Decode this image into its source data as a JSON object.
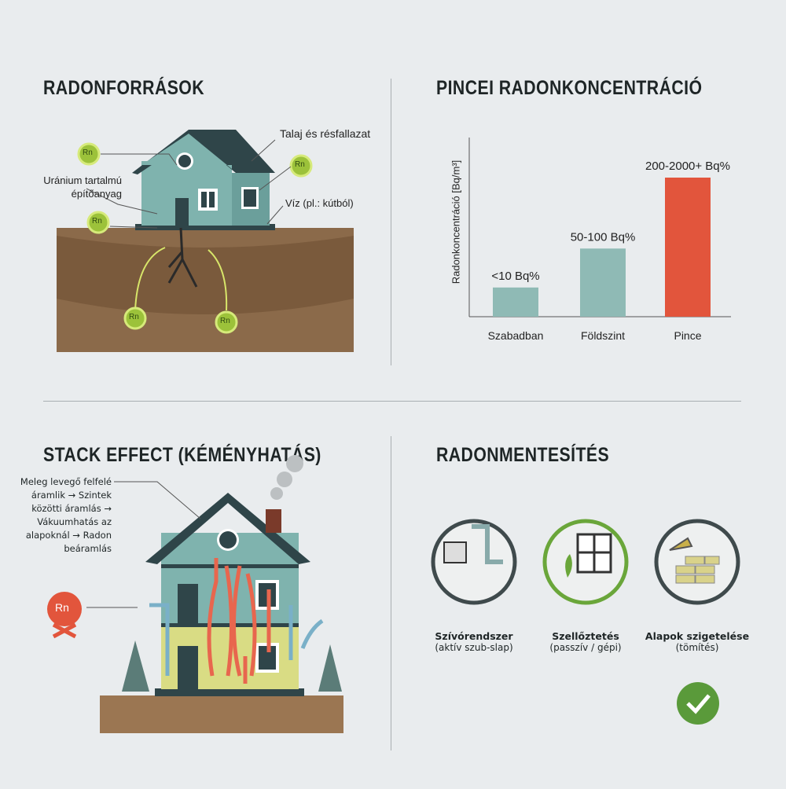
{
  "sections": {
    "sources": {
      "title": "RADONFORRÁSOK",
      "labels": {
        "soil": "Talaj és résfallazat",
        "material": "Uránium tartalmú építőanyag",
        "water": "Víz (pl.: kútból)"
      },
      "badge": "Rn"
    },
    "chart": {
      "title": "PINCEI RADONKONCENTRÁCIÓ"
    },
    "stack": {
      "title": "STACK EFFECT (KÉMÉNYHATÁS)",
      "description": [
        "Meleg levegő felfelé",
        "áramlik → Szintek",
        "közötti áramlás →",
        "Vákuumhatás az",
        "alapoknál → Radon",
        "beáramlás"
      ],
      "badge": "Rn"
    },
    "mitigation": {
      "title": "RADONMENTESÍTÉS",
      "items": [
        {
          "title": "Szívórendszer",
          "subtitle": "(aktív szub-slap)",
          "icon": "fan-pipe-icon"
        },
        {
          "title": "Szellőztetés",
          "subtitle": "(passzív / gépi)",
          "icon": "window-plant-icon"
        },
        {
          "title": "Alapok szigetelése",
          "subtitle": "(tömítés)",
          "icon": "trowel-bricks-icon"
        }
      ]
    }
  },
  "chart_data": {
    "type": "bar",
    "categories": [
      "Szabadban",
      "Földszint",
      "Pince"
    ],
    "data_labels": [
      "<10 Bq%",
      "50-100 Bq%",
      "200-2000+ Bq%"
    ],
    "relative_heights": [
      21,
      49,
      100
    ],
    "colors": [
      "#8fbab5",
      "#8fbab5",
      "#e2553c"
    ],
    "ylabel": "Radonkoncentráció [Bq/m³]",
    "xlabel": "",
    "title": ""
  },
  "colors": {
    "house": "#7fb3ae",
    "roof": "#2f4549",
    "soil": "#8b6a4a",
    "radon": "#9cc23a",
    "arrow": "#e8664e",
    "check": "#5a9a3a"
  }
}
